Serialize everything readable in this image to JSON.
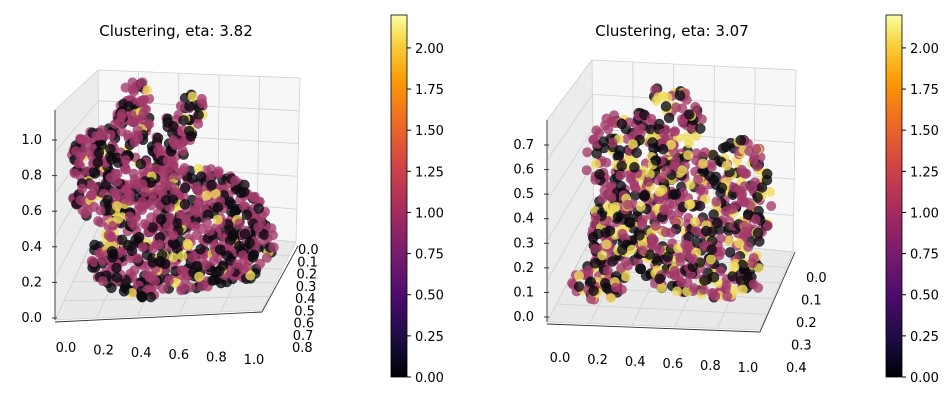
{
  "chart_data": [
    {
      "type": "scatter",
      "projection": "3d",
      "title": "Clustering, eta: 3.82",
      "xlabel": "",
      "ylabel": "",
      "zlabel": "",
      "x_ticks": [
        "0.0",
        "0.2",
        "0.4",
        "0.6",
        "0.8",
        "1.0"
      ],
      "y_ticks": [
        "0.0",
        "0.1",
        "0.2",
        "0.3",
        "0.4",
        "0.5",
        "0.6",
        "0.7",
        "0.8"
      ],
      "z_ticks": [
        "0.0",
        "0.2",
        "0.4",
        "0.6",
        "0.8",
        "1.0"
      ],
      "xlim": [
        0.0,
        1.0
      ],
      "ylim": [
        0.0,
        0.8
      ],
      "zlim": [
        0.0,
        1.0
      ],
      "shape": "stanford bunny point cloud",
      "cluster_values": [
        0.0,
        1.0,
        2.0
      ],
      "cluster_colors": [
        "#0d0a12",
        "#a33a6a",
        "#f1dc5a"
      ],
      "cluster_share": [
        0.35,
        0.58,
        0.07
      ],
      "colorbar": {
        "cmap": "inferno",
        "min": 0.0,
        "max": 2.2,
        "ticks": [
          "0.00",
          "0.25",
          "0.50",
          "0.75",
          "1.00",
          "1.25",
          "1.50",
          "1.75",
          "2.00"
        ]
      }
    },
    {
      "type": "scatter",
      "projection": "3d",
      "title": "Clustering, eta: 3.07",
      "xlabel": "",
      "ylabel": "",
      "zlabel": "",
      "x_ticks": [
        "0.0",
        "0.2",
        "0.4",
        "0.6",
        "0.8",
        "1.0"
      ],
      "y_ticks": [
        "0.0",
        "0.1",
        "0.2",
        "0.3",
        "0.4"
      ],
      "z_ticks": [
        "0.0",
        "0.1",
        "0.2",
        "0.3",
        "0.4",
        "0.5",
        "0.6",
        "0.7"
      ],
      "xlim": [
        0.0,
        1.0
      ],
      "ylim": [
        0.0,
        0.4
      ],
      "zlim": [
        0.0,
        0.75
      ],
      "shape": "stanford bunny point cloud (rotated)",
      "cluster_values": [
        0.0,
        1.0,
        2.0
      ],
      "cluster_colors": [
        "#0d0a12",
        "#a33a6a",
        "#f1dc5a"
      ],
      "cluster_share": [
        0.33,
        0.45,
        0.22
      ],
      "colorbar": {
        "cmap": "inferno",
        "min": 0.0,
        "max": 2.2,
        "ticks": [
          "0.00",
          "0.25",
          "0.50",
          "0.75",
          "1.00",
          "1.25",
          "1.50",
          "1.75",
          "2.00"
        ]
      }
    }
  ]
}
